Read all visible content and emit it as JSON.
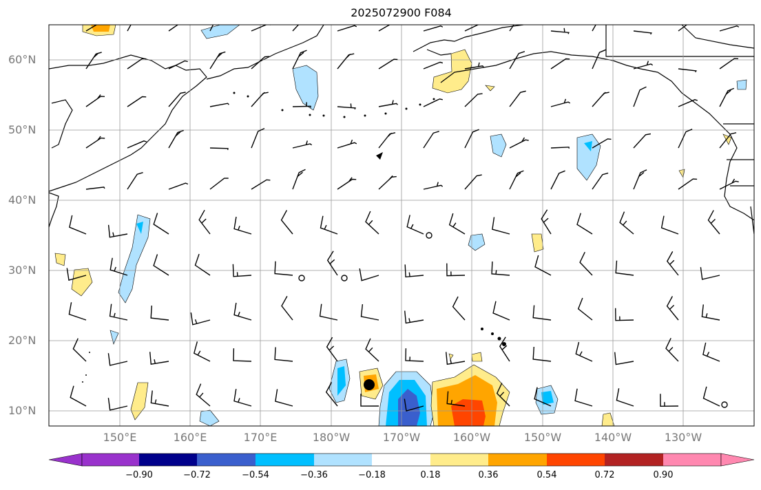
{
  "title": "2025072900 F084",
  "lat_labels": [
    "60°N",
    "50°N",
    "40°N",
    "30°N",
    "20°N",
    "10°N"
  ],
  "lon_labels": [
    "150°E",
    "160°E",
    "170°E",
    "180°W",
    "170°W",
    "160°W",
    "150°W",
    "140°W",
    "130°W"
  ],
  "colorbar": {
    "ticks": [
      "−0.90",
      "−0.72",
      "−0.54",
      "−0.36",
      "−0.18",
      "0.18",
      "0.36",
      "0.54",
      "0.72",
      "0.90"
    ],
    "colors": [
      "#9932cc",
      "#00008b",
      "#3a5fcd",
      "#00bfff",
      "#b0e2ff",
      "#ffffff",
      "#ffec8b",
      "#ffa500",
      "#ff4500",
      "#b22222",
      "#ff88b0"
    ]
  },
  "marker_colors": {
    "land": "#000000",
    "grid": "#999999"
  }
}
